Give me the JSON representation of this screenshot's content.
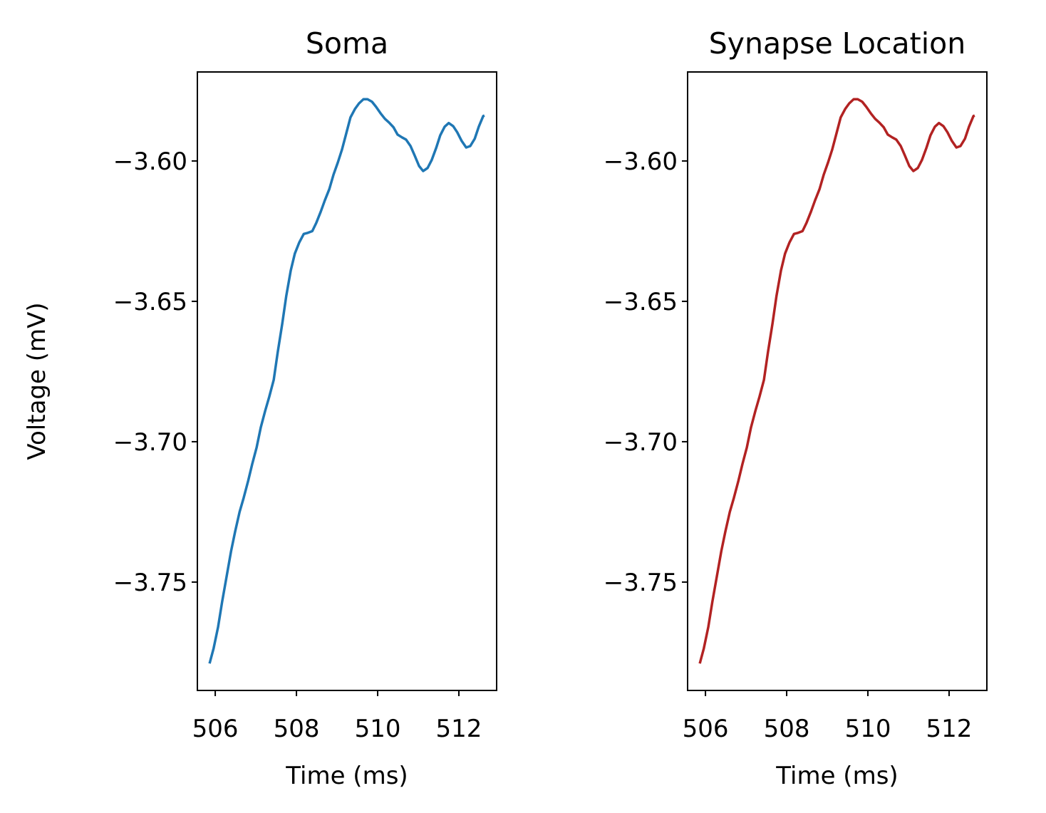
{
  "chart_data": [
    {
      "type": "line",
      "title": "Soma",
      "xlabel": "Time (ms)",
      "ylabel": "Voltage (mV)",
      "x": [
        505.86,
        505.96,
        506.07,
        506.17,
        506.28,
        506.39,
        506.49,
        506.6,
        506.7,
        506.81,
        506.91,
        507.02,
        507.12,
        507.23,
        507.33,
        507.44,
        507.54,
        507.65,
        507.75,
        507.86,
        507.96,
        508.07,
        508.18,
        508.28,
        508.39,
        508.49,
        508.6,
        508.7,
        508.81,
        508.91,
        509.02,
        509.12,
        509.23,
        509.33,
        509.44,
        509.54,
        509.65,
        509.75,
        509.86,
        509.96,
        510.07,
        510.18,
        510.28,
        510.39,
        510.49,
        510.6,
        510.7,
        510.81,
        510.91,
        511.02,
        511.12,
        511.23,
        511.33,
        511.44,
        511.54,
        511.65,
        511.75,
        511.86,
        511.96,
        512.07,
        512.18,
        512.28,
        512.39,
        512.49,
        512.6,
        512.63
      ],
      "series": [
        {
          "color": "#1f77b4",
          "values": [
            -3.779,
            -3.7736,
            -3.766,
            -3.757,
            -3.748,
            -3.739,
            -3.732,
            -3.725,
            -3.72,
            -3.714,
            -3.708,
            -3.702,
            -3.695,
            -3.689,
            -3.684,
            -3.678,
            -3.668,
            -3.658,
            -3.648,
            -3.639,
            -3.633,
            -3.629,
            -3.626,
            -3.6256,
            -3.625,
            -3.622,
            -3.618,
            -3.614,
            -3.61,
            -3.605,
            -3.6005,
            -3.596,
            -3.59,
            -3.5845,
            -3.5815,
            -3.5795,
            -3.578,
            -3.578,
            -3.5789,
            -3.5807,
            -3.583,
            -3.585,
            -3.5863,
            -3.588,
            -3.5906,
            -3.5916,
            -3.5924,
            -3.5947,
            -3.598,
            -3.6018,
            -3.6036,
            -3.6025,
            -3.5997,
            -3.5954,
            -3.5909,
            -3.5878,
            -3.5865,
            -3.5876,
            -3.5898,
            -3.5929,
            -3.5952,
            -3.5947,
            -3.5921,
            -3.5878,
            -3.584,
            -3.5838
          ]
        }
      ],
      "xlim": [
        505.56,
        512.93
      ],
      "xticks": [
        506,
        508,
        510,
        512
      ],
      "ylim": [
        -3.7886,
        -3.5683
      ],
      "yticks": [
        {
          "value": -3.75,
          "label": "−3.75"
        },
        {
          "value": -3.7,
          "label": "−3.70"
        },
        {
          "value": -3.65,
          "label": "−3.65"
        },
        {
          "value": -3.6,
          "label": "−3.60"
        }
      ]
    },
    {
      "type": "line",
      "title": "Synapse Location",
      "xlabel": "Time (ms)",
      "x": [
        505.86,
        505.96,
        506.07,
        506.17,
        506.28,
        506.39,
        506.49,
        506.6,
        506.7,
        506.81,
        506.91,
        507.02,
        507.12,
        507.23,
        507.33,
        507.44,
        507.54,
        507.65,
        507.75,
        507.86,
        507.96,
        508.07,
        508.18,
        508.28,
        508.39,
        508.49,
        508.6,
        508.7,
        508.81,
        508.91,
        509.02,
        509.12,
        509.23,
        509.33,
        509.44,
        509.54,
        509.65,
        509.75,
        509.86,
        509.96,
        510.07,
        510.18,
        510.28,
        510.39,
        510.49,
        510.6,
        510.7,
        510.81,
        510.91,
        511.02,
        511.12,
        511.23,
        511.33,
        511.44,
        511.54,
        511.65,
        511.75,
        511.86,
        511.96,
        512.07,
        512.18,
        512.28,
        512.39,
        512.49,
        512.6,
        512.63
      ],
      "series": [
        {
          "color": "#b22222",
          "values": [
            -3.779,
            -3.7736,
            -3.766,
            -3.757,
            -3.748,
            -3.739,
            -3.732,
            -3.725,
            -3.72,
            -3.714,
            -3.708,
            -3.702,
            -3.695,
            -3.689,
            -3.684,
            -3.678,
            -3.668,
            -3.658,
            -3.648,
            -3.639,
            -3.633,
            -3.629,
            -3.626,
            -3.6256,
            -3.625,
            -3.622,
            -3.618,
            -3.614,
            -3.61,
            -3.605,
            -3.6005,
            -3.596,
            -3.59,
            -3.5845,
            -3.5815,
            -3.5795,
            -3.578,
            -3.578,
            -3.5789,
            -3.5807,
            -3.583,
            -3.585,
            -3.5863,
            -3.588,
            -3.5906,
            -3.5916,
            -3.5924,
            -3.5947,
            -3.598,
            -3.6018,
            -3.6036,
            -3.6025,
            -3.5997,
            -3.5954,
            -3.5909,
            -3.5878,
            -3.5865,
            -3.5876,
            -3.5898,
            -3.5929,
            -3.5952,
            -3.5947,
            -3.5921,
            -3.5878,
            -3.584,
            -3.5838
          ]
        }
      ],
      "xlim": [
        505.56,
        512.93
      ],
      "xticks": [
        506,
        508,
        510,
        512
      ],
      "ylim": [
        -3.7886,
        -3.5683
      ],
      "yticks": [
        {
          "value": -3.75,
          "label": "−3.75"
        },
        {
          "value": -3.7,
          "label": "−3.70"
        },
        {
          "value": -3.65,
          "label": "−3.65"
        },
        {
          "value": -3.6,
          "label": "−3.60"
        }
      ]
    }
  ]
}
